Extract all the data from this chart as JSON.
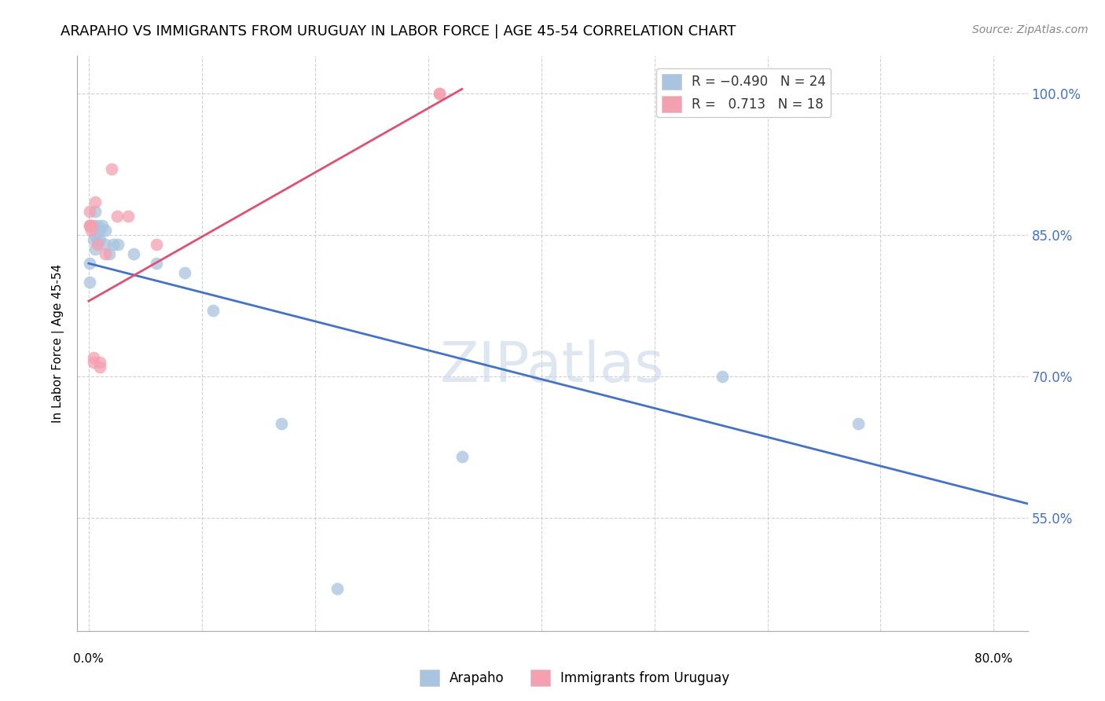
{
  "title": "ARAPAHO VS IMMIGRANTS FROM URUGUAY IN LABOR FORCE | AGE 45-54 CORRELATION CHART",
  "source": "Source: ZipAtlas.com",
  "ylabel": "In Labor Force | Age 45-54",
  "y_ticks": [
    0.55,
    0.7,
    0.85,
    1.0
  ],
  "y_tick_labels": [
    "55.0%",
    "70.0%",
    "85.0%",
    "100.0%"
  ],
  "x_min": -0.01,
  "x_max": 0.83,
  "y_min": 0.43,
  "y_max": 1.04,
  "watermark": "ZIPatlas",
  "arapaho_scatter": [
    [
      0.001,
      0.82
    ],
    [
      0.001,
      0.8
    ],
    [
      0.004,
      0.86
    ],
    [
      0.004,
      0.845
    ],
    [
      0.006,
      0.875
    ],
    [
      0.006,
      0.85
    ],
    [
      0.006,
      0.835
    ],
    [
      0.008,
      0.86
    ],
    [
      0.008,
      0.845
    ],
    [
      0.01,
      0.855
    ],
    [
      0.01,
      0.845
    ],
    [
      0.012,
      0.86
    ],
    [
      0.015,
      0.855
    ],
    [
      0.015,
      0.84
    ],
    [
      0.018,
      0.83
    ],
    [
      0.022,
      0.84
    ],
    [
      0.026,
      0.84
    ],
    [
      0.04,
      0.83
    ],
    [
      0.06,
      0.82
    ],
    [
      0.085,
      0.81
    ],
    [
      0.11,
      0.77
    ],
    [
      0.17,
      0.65
    ],
    [
      0.22,
      0.475
    ],
    [
      0.33,
      0.615
    ],
    [
      0.56,
      0.7
    ],
    [
      0.68,
      0.65
    ]
  ],
  "uruguay_scatter": [
    [
      0.001,
      0.86
    ],
    [
      0.001,
      0.86
    ],
    [
      0.001,
      0.875
    ],
    [
      0.002,
      0.86
    ],
    [
      0.002,
      0.855
    ],
    [
      0.004,
      0.72
    ],
    [
      0.004,
      0.715
    ],
    [
      0.006,
      0.885
    ],
    [
      0.008,
      0.84
    ],
    [
      0.01,
      0.715
    ],
    [
      0.01,
      0.71
    ],
    [
      0.015,
      0.83
    ],
    [
      0.02,
      0.92
    ],
    [
      0.025,
      0.87
    ],
    [
      0.035,
      0.87
    ],
    [
      0.06,
      0.84
    ],
    [
      0.31,
      1.0
    ],
    [
      0.31,
      1.0
    ]
  ],
  "arapaho_color": "#a8c4e0",
  "arapaho_line_color": "#4472c4",
  "uruguay_color": "#f4a0b0",
  "uruguay_line_color": "#e05070",
  "arapaho_trend_x": [
    0.0,
    0.83
  ],
  "arapaho_trend_y": [
    0.82,
    0.565
  ],
  "uruguay_trend_x": [
    0.0,
    0.33
  ],
  "uruguay_trend_y": [
    0.78,
    1.005
  ],
  "background_color": "#ffffff",
  "grid_color": "#d0d0d0",
  "grid_linestyle": "--"
}
